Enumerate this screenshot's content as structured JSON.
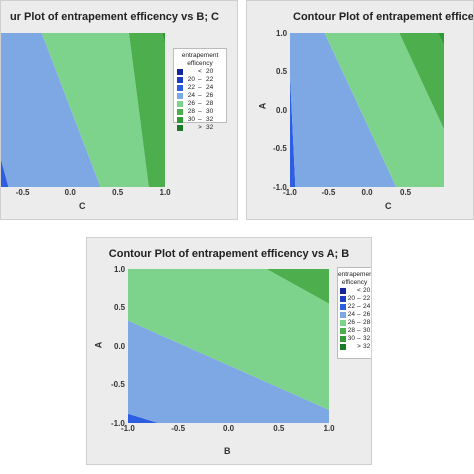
{
  "chart_data": [
    {
      "type": "contour",
      "title": "Contour Plot of entrapement efficency vs B; C",
      "title_visible": "ur Plot of entrapement efficency vs B; C",
      "xlabel": "C",
      "ylabel": "",
      "xlim": [
        -0.75,
        1.0
      ],
      "ylim": [
        -1.0,
        1.0
      ],
      "x_ticks": [
        "-0.5",
        "0.0",
        "0.5",
        "1.0"
      ],
      "y_ticks": [],
      "regions": [
        {
          "class": "22 – 24",
          "color": "#2d5de0",
          "polygon": [
            [
              -0.75,
              -0.55
            ],
            [
              -0.75,
              -1.0
            ],
            [
              -0.65,
              -1.0
            ]
          ]
        },
        {
          "class": "24 – 26",
          "color": "#7ea8e3",
          "polygon": [
            [
              -0.75,
              1.0
            ],
            [
              -0.3,
              1.0
            ],
            [
              0.32,
              -1.0
            ],
            [
              -0.65,
              -1.0
            ],
            [
              -0.75,
              -0.55
            ]
          ]
        },
        {
          "class": "26 – 28",
          "color": "#7ed38c",
          "polygon": [
            [
              -0.3,
              1.0
            ],
            [
              0.62,
              1.0
            ],
            [
              0.83,
              -1.0
            ],
            [
              0.32,
              -1.0
            ]
          ]
        },
        {
          "class": "28 – 30",
          "color": "#4cae4c",
          "polygon": [
            [
              0.62,
              1.0
            ],
            [
              0.97,
              1.0
            ],
            [
              1.0,
              0.85
            ],
            [
              1.0,
              -1.0
            ],
            [
              0.83,
              -1.0
            ]
          ]
        },
        {
          "class": "30 – 32",
          "color": "#2f9a37",
          "polygon": [
            [
              0.97,
              1.0
            ],
            [
              1.0,
              1.0
            ],
            [
              1.0,
              0.85
            ]
          ]
        }
      ],
      "legend": {
        "title": "entrapement efficency",
        "placement": "right",
        "entries": [
          {
            "lo": "",
            "sep": "<",
            "hi": "20",
            "color": "#14269a"
          },
          {
            "lo": "20",
            "sep": "–",
            "hi": "22",
            "color": "#1d3ec4"
          },
          {
            "lo": "22",
            "sep": "–",
            "hi": "24",
            "color": "#2d5de0"
          },
          {
            "lo": "24",
            "sep": "–",
            "hi": "26",
            "color": "#7ea8e3"
          },
          {
            "lo": "26",
            "sep": "–",
            "hi": "28",
            "color": "#7ed38c"
          },
          {
            "lo": "28",
            "sep": "–",
            "hi": "30",
            "color": "#4cae4c"
          },
          {
            "lo": "30",
            "sep": "–",
            "hi": "32",
            "color": "#2f9a37"
          },
          {
            "lo": "",
            "sep": ">",
            "hi": "32",
            "color": "#1a7a25"
          }
        ]
      }
    },
    {
      "type": "contour",
      "title": "Contour Plot of entrapement efficency vs A; C",
      "title_visible": "Contour Plot of entrapement efficency",
      "xlabel": "C",
      "ylabel": "A",
      "xlim": [
        -1.0,
        1.0
      ],
      "ylim": [
        -1.0,
        1.0
      ],
      "x_ticks": [
        "-1.0",
        "-0.5",
        "0.0",
        "0.5"
      ],
      "y_ticks": [
        "1.0",
        "0.5",
        "0.0",
        "-0.5",
        "-1.0"
      ],
      "regions": [
        {
          "class": "22 – 24",
          "color": "#2d5de0",
          "polygon": [
            [
              -1.0,
              0.45
            ],
            [
              -1.0,
              -1.0
            ],
            [
              -0.93,
              -1.0
            ]
          ]
        },
        {
          "class": "24 – 26",
          "color": "#7ea8e3",
          "polygon": [
            [
              -1.0,
              1.0
            ],
            [
              -0.55,
              1.0
            ],
            [
              0.38,
              -1.0
            ],
            [
              -0.93,
              -1.0
            ],
            [
              -1.0,
              0.45
            ]
          ]
        },
        {
          "class": "26 – 28",
          "color": "#7ed38c",
          "polygon": [
            [
              -0.55,
              1.0
            ],
            [
              0.42,
              1.0
            ],
            [
              1.0,
              -0.25
            ],
            [
              1.0,
              -1.0
            ],
            [
              0.38,
              -1.0
            ]
          ]
        },
        {
          "class": "28 – 30",
          "color": "#4cae4c",
          "polygon": [
            [
              0.42,
              1.0
            ],
            [
              1.0,
              1.0
            ],
            [
              1.0,
              -0.25
            ]
          ]
        },
        {
          "class": "30 – 32",
          "color": "#2f9a37",
          "polygon": [
            [
              0.93,
              1.0
            ],
            [
              1.0,
              1.0
            ],
            [
              1.0,
              0.85
            ]
          ]
        }
      ]
    },
    {
      "type": "contour",
      "title": "Contour Plot of entrapement efficency vs A; B",
      "xlabel": "B",
      "ylabel": "A",
      "xlim": [
        -1.0,
        1.0
      ],
      "ylim": [
        -1.0,
        1.0
      ],
      "x_ticks": [
        "-1.0",
        "-0.5",
        "0.0",
        "0.5",
        "1.0"
      ],
      "y_ticks": [
        "1.0",
        "0.5",
        "0.0",
        "-0.5",
        "-1.0"
      ],
      "regions": [
        {
          "class": "22 – 24",
          "color": "#2d5de0",
          "polygon": [
            [
              -1.0,
              -1.0
            ],
            [
              -1.0,
              -0.88
            ],
            [
              -0.7,
              -1.0
            ]
          ]
        },
        {
          "class": "24 – 26",
          "color": "#7ea8e3",
          "polygon": [
            [
              -1.0,
              -0.88
            ],
            [
              -1.0,
              0.33
            ],
            [
              1.0,
              -0.83
            ],
            [
              1.0,
              -1.0
            ],
            [
              -0.7,
              -1.0
            ]
          ]
        },
        {
          "class": "26 – 28",
          "color": "#7ed38c",
          "polygon": [
            [
              -1.0,
              0.33
            ],
            [
              -1.0,
              1.0
            ],
            [
              0.38,
              1.0
            ],
            [
              1.0,
              0.55
            ],
            [
              1.0,
              -0.83
            ]
          ]
        },
        {
          "class": "28 – 30",
          "color": "#4cae4c",
          "polygon": [
            [
              0.38,
              1.0
            ],
            [
              1.0,
              1.0
            ],
            [
              1.0,
              0.55
            ]
          ]
        }
      ],
      "legend": {
        "title": "entrapement efficency",
        "placement": "right",
        "entries": [
          {
            "lo": "",
            "sep": "<",
            "hi": "20",
            "color": "#14269a"
          },
          {
            "lo": "20",
            "sep": "–",
            "hi": "22",
            "color": "#1d3ec4"
          },
          {
            "lo": "22",
            "sep": "–",
            "hi": "24",
            "color": "#2d5de0"
          },
          {
            "lo": "24",
            "sep": "–",
            "hi": "26",
            "color": "#7ea8e3"
          },
          {
            "lo": "26",
            "sep": "–",
            "hi": "28",
            "color": "#7ed38c"
          },
          {
            "lo": "28",
            "sep": "–",
            "hi": "30",
            "color": "#4cae4c"
          },
          {
            "lo": "30",
            "sep": "–",
            "hi": "32",
            "color": "#2f9a37"
          },
          {
            "lo": "",
            "sep": ">",
            "hi": "32",
            "color": "#1a7a25"
          }
        ]
      }
    }
  ]
}
